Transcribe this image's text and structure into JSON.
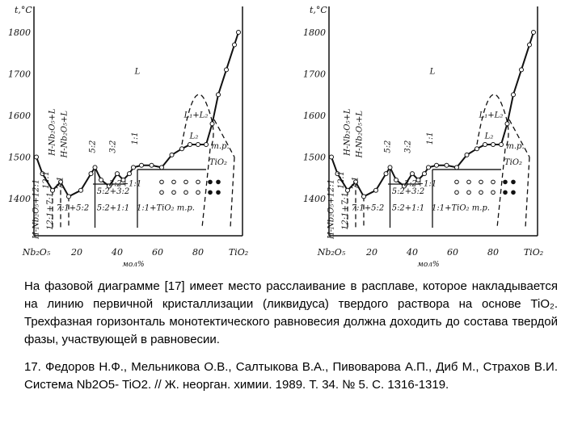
{
  "diagram": {
    "y_axis_label": "t,°C",
    "y_ticks": [
      "1800",
      "1700",
      "1600",
      "1500",
      "1400"
    ],
    "x_ticks": [
      "Nb₂O₅",
      "20",
      "40",
      "60",
      "80",
      "TiO₂"
    ],
    "x_axis_label": "мол%",
    "regions": [
      "L",
      "H-Nb₂O₅+L",
      "H-Nb₂O₅+L",
      "5:2",
      "3:2",
      "1:1",
      "L₁+L₂",
      "L₂",
      "т.р.",
      "TiO₂",
      "12:1",
      "7:1",
      "H-Nb₂O₅+12:1",
      "12:1+7:1",
      "7:1+5:2",
      "5:2+3:2",
      "3:2+1:1",
      "5:2+1:1",
      "1:1+TiO₂ т.р."
    ]
  },
  "paragraph": "На фазовой диаграмме [17] имеет место расслаивание в расплаве, которое накладывается на линию первичной кристаллизации (ликвидуса) твердого раствора на основе TiO₂. Трехфазная горизонталь монотектического равновесия  должна доходить до состава твердой фазы, участвующей в равновесии.",
  "reference": "17. Федоров Н.Ф., Мельникова О.В., Салтыкова В.А., Пивоварова А.П., Диб М., Страхов В.И. Система Nb2O5- TiO2. // Ж. неорган. химии. 1989. Т. 34. № 5. С. 1316-1319."
}
